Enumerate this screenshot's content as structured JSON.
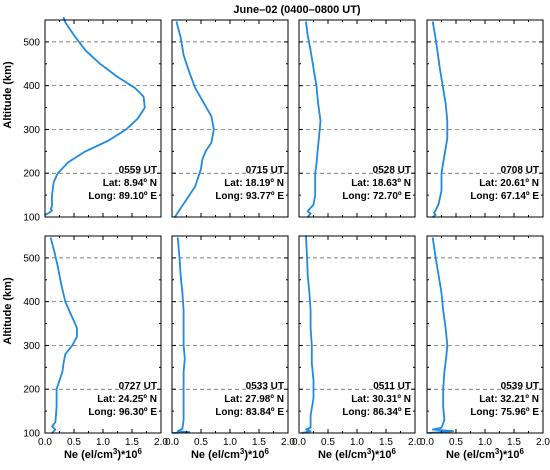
{
  "chart_data": {
    "type": "line",
    "title": "June–02 (0400–0800 UT)",
    "xlabel_main": "Ne (el/cm",
    "xlabel_sup": "3",
    "xlabel_mid": ")*10",
    "xlabel_exp": "6",
    "ylabel": "Altitude (km)",
    "xlim": [
      0,
      2.0
    ],
    "ylim": [
      100,
      550
    ],
    "xticks": [
      "0.0",
      "0.5",
      "1.0",
      "1.5",
      "2.0"
    ],
    "yticks": [
      "100",
      "200",
      "300",
      "400",
      "500"
    ],
    "grid": "dashed horizontal at 100 km intervals",
    "line_color": "#1f8ae0",
    "panels": [
      {
        "time": "0559 UT",
        "lat": "Lat: 8.94º N",
        "long": "Long: 89.10º E",
        "points": [
          [
            0.0,
            105
          ],
          [
            0.05,
            108
          ],
          [
            0.1,
            112
          ],
          [
            0.12,
            115
          ],
          [
            0.1,
            118
          ],
          [
            0.12,
            125
          ],
          [
            0.12,
            150
          ],
          [
            0.15,
            180
          ],
          [
            0.22,
            200
          ],
          [
            0.4,
            225
          ],
          [
            0.7,
            250
          ],
          [
            1.1,
            275
          ],
          [
            1.4,
            300
          ],
          [
            1.6,
            325
          ],
          [
            1.72,
            350
          ],
          [
            1.7,
            375
          ],
          [
            1.55,
            395
          ],
          [
            1.25,
            420
          ],
          [
            0.95,
            450
          ],
          [
            0.7,
            480
          ],
          [
            0.5,
            515
          ],
          [
            0.35,
            545
          ],
          [
            0.32,
            555
          ]
        ]
      },
      {
        "time": "0715 UT",
        "lat": "Lat: 18.19º N",
        "long": "Long: 93.77º E",
        "points": [
          [
            0.05,
            100
          ],
          [
            0.1,
            110
          ],
          [
            0.2,
            130
          ],
          [
            0.3,
            150
          ],
          [
            0.4,
            170
          ],
          [
            0.45,
            190
          ],
          [
            0.5,
            210
          ],
          [
            0.52,
            230
          ],
          [
            0.58,
            250
          ],
          [
            0.68,
            270
          ],
          [
            0.72,
            300
          ],
          [
            0.68,
            330
          ],
          [
            0.55,
            360
          ],
          [
            0.4,
            395
          ],
          [
            0.3,
            430
          ],
          [
            0.2,
            470
          ],
          [
            0.15,
            510
          ],
          [
            0.08,
            545
          ]
        ]
      },
      {
        "time": "0528 UT",
        "lat": "Lat: 18.63º N",
        "long": "Long: 72.70º E",
        "points": [
          [
            0.15,
            100
          ],
          [
            0.2,
            108
          ],
          [
            0.15,
            113
          ],
          [
            0.18,
            118
          ],
          [
            0.25,
            128
          ],
          [
            0.28,
            150
          ],
          [
            0.28,
            175
          ],
          [
            0.28,
            200
          ],
          [
            0.3,
            220
          ],
          [
            0.32,
            250
          ],
          [
            0.35,
            290
          ],
          [
            0.37,
            320
          ],
          [
            0.33,
            360
          ],
          [
            0.3,
            400
          ],
          [
            0.25,
            440
          ],
          [
            0.2,
            480
          ],
          [
            0.15,
            515
          ],
          [
            0.12,
            545
          ]
        ]
      },
      {
        "time": "0708 UT",
        "lat": "Lat: 20.61º N",
        "long": "Long: 67.14º E",
        "points": [
          [
            0.1,
            100
          ],
          [
            0.15,
            105
          ],
          [
            0.12,
            110
          ],
          [
            0.15,
            115
          ],
          [
            0.2,
            130
          ],
          [
            0.25,
            160
          ],
          [
            0.25,
            200
          ],
          [
            0.3,
            240
          ],
          [
            0.35,
            280
          ],
          [
            0.35,
            320
          ],
          [
            0.32,
            360
          ],
          [
            0.27,
            400
          ],
          [
            0.22,
            440
          ],
          [
            0.18,
            480
          ],
          [
            0.14,
            515
          ],
          [
            0.1,
            545
          ]
        ]
      },
      {
        "time": "0727 UT",
        "lat": "Lat: 24.25º N",
        "long": "Long: 96.30º E",
        "points": [
          [
            0.12,
            100
          ],
          [
            0.18,
            108
          ],
          [
            0.12,
            115
          ],
          [
            0.18,
            125
          ],
          [
            0.2,
            160
          ],
          [
            0.2,
            200
          ],
          [
            0.25,
            220
          ],
          [
            0.3,
            240
          ],
          [
            0.32,
            260
          ],
          [
            0.35,
            280
          ],
          [
            0.47,
            300
          ],
          [
            0.55,
            320
          ],
          [
            0.55,
            340
          ],
          [
            0.45,
            370
          ],
          [
            0.35,
            400
          ],
          [
            0.28,
            440
          ],
          [
            0.22,
            480
          ],
          [
            0.16,
            515
          ],
          [
            0.1,
            545
          ]
        ]
      },
      {
        "time": "0533 UT",
        "lat": "Lat: 27.98º N",
        "long": "Long: 83.84º E",
        "points": [
          [
            0.02,
            100
          ],
          [
            0.3,
            102
          ],
          [
            0.1,
            104
          ],
          [
            0.18,
            110
          ],
          [
            0.2,
            130
          ],
          [
            0.2,
            160
          ],
          [
            0.2,
            200
          ],
          [
            0.2,
            240
          ],
          [
            0.22,
            270
          ],
          [
            0.2,
            300
          ],
          [
            0.2,
            340
          ],
          [
            0.2,
            380
          ],
          [
            0.18,
            420
          ],
          [
            0.15,
            460
          ],
          [
            0.13,
            500
          ],
          [
            0.1,
            545
          ]
        ]
      },
      {
        "time": "0511 UT",
        "lat": "Lat: 30.31º N",
        "long": "Long: 86.34º E",
        "points": [
          [
            0.05,
            100
          ],
          [
            0.2,
            104
          ],
          [
            0.12,
            108
          ],
          [
            0.2,
            112
          ],
          [
            0.2,
            140
          ],
          [
            0.25,
            180
          ],
          [
            0.25,
            220
          ],
          [
            0.22,
            260
          ],
          [
            0.22,
            300
          ],
          [
            0.2,
            340
          ],
          [
            0.2,
            380
          ],
          [
            0.18,
            420
          ],
          [
            0.15,
            460
          ],
          [
            0.14,
            500
          ],
          [
            0.13,
            525
          ],
          [
            0.12,
            550
          ]
        ]
      },
      {
        "time": "0539 UT",
        "lat": "Lat: 32.21º N",
        "long": "Long: 75.96º E",
        "points": [
          [
            0.02,
            100
          ],
          [
            0.45,
            104
          ],
          [
            0.1,
            108
          ],
          [
            0.25,
            112
          ],
          [
            0.3,
            130
          ],
          [
            0.28,
            160
          ],
          [
            0.28,
            200
          ],
          [
            0.3,
            240
          ],
          [
            0.33,
            270
          ],
          [
            0.35,
            300
          ],
          [
            0.32,
            340
          ],
          [
            0.28,
            380
          ],
          [
            0.25,
            420
          ],
          [
            0.2,
            460
          ],
          [
            0.15,
            500
          ],
          [
            0.1,
            545
          ]
        ]
      }
    ]
  }
}
